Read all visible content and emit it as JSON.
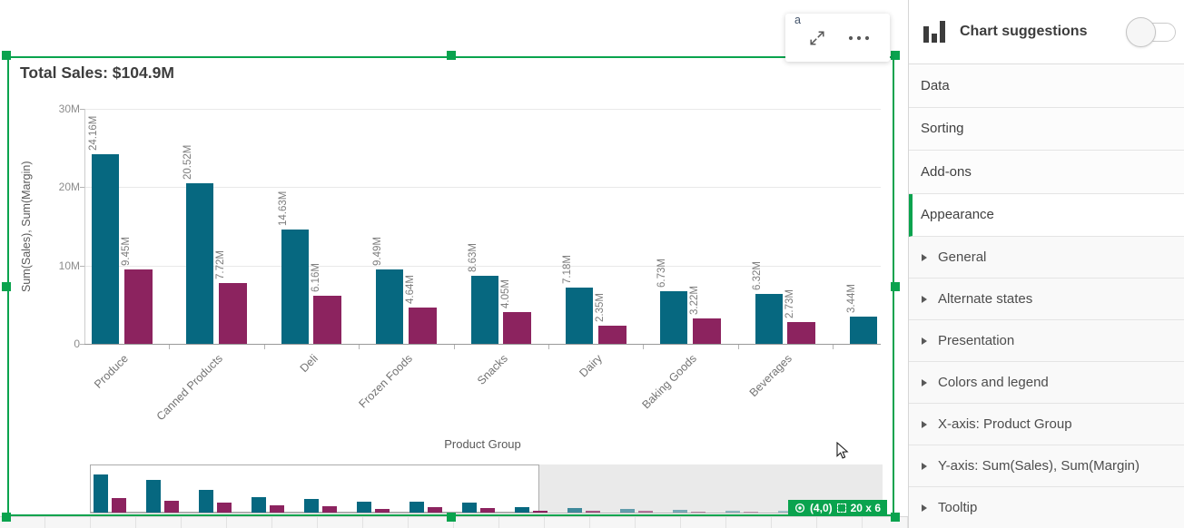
{
  "window": {
    "artifact_text": "a"
  },
  "chart": {
    "title": "Total Sales: $104.9M",
    "badge": {
      "position": "(4,0)",
      "size": "20 x 6"
    }
  },
  "chart_data": {
    "type": "bar",
    "title": "Total Sales: $104.9M",
    "xlabel": "Product Group",
    "ylabel": "Sum(Sales), Sum(Margin)",
    "ylim_m": [
      0,
      30
    ],
    "grid": "horizontal",
    "legend": "none",
    "y_axis": {
      "ticks": [
        {
          "label": "30M",
          "value_m": 30
        },
        {
          "label": "20M",
          "value_m": 20
        },
        {
          "label": "10M",
          "value_m": 10
        },
        {
          "label": "0",
          "value_m": 0
        }
      ]
    },
    "categories": [
      "Produce",
      "Canned Products",
      "Deli",
      "Frozen Foods",
      "Snacks",
      "Dairy",
      "Baking Goods",
      "Beverages",
      ""
    ],
    "series": [
      {
        "name": "Sum(Sales)",
        "color": "#066880",
        "values_m": [
          24.16,
          20.52,
          14.63,
          9.49,
          8.63,
          7.18,
          6.73,
          6.32,
          3.44
        ],
        "labels": [
          "24.16M",
          "20.52M",
          "14.63M",
          "9.49M",
          "8.63M",
          "7.18M",
          "6.73M",
          "6.32M",
          "3.44M"
        ]
      },
      {
        "name": "Sum(Margin)",
        "color": "#8c235f",
        "values_m": [
          9.45,
          7.72,
          6.16,
          4.64,
          4.05,
          2.35,
          3.22,
          2.73,
          null
        ],
        "labels": [
          "9.45M",
          "7.72M",
          "6.16M",
          "4.64M",
          "4.05M",
          "2.35M",
          "3.22M",
          "2.73M",
          null
        ]
      }
    ],
    "navigator": {
      "viewport_groups": 9,
      "sales_m": [
        24.16,
        20.52,
        14.63,
        9.49,
        8.63,
        7.18,
        6.73,
        6.32,
        3.44,
        2.9,
        2.2,
        1.7,
        1.2,
        0.9
      ],
      "margins_m": [
        9.45,
        7.72,
        6.16,
        4.64,
        4.05,
        2.35,
        3.22,
        2.73,
        1.2,
        1.1,
        0.9,
        0.7,
        0.5,
        0.35
      ]
    }
  },
  "colors": {
    "selection_green": "#0aa34e",
    "sales_teal": "#066880",
    "margin_maroon": "#8c235f"
  },
  "panel": {
    "header": {
      "title": "Chart suggestions",
      "toggle": "off"
    },
    "sections": [
      "Data",
      "Sorting",
      "Add-ons",
      "Appearance"
    ],
    "active_index": 3,
    "active_section": "Appearance",
    "subsections": [
      "General",
      "Alternate states",
      "Presentation",
      "Colors and legend",
      "X-axis: Product Group",
      "Y-axis: Sum(Sales), Sum(Margin)",
      "Tooltip"
    ]
  }
}
